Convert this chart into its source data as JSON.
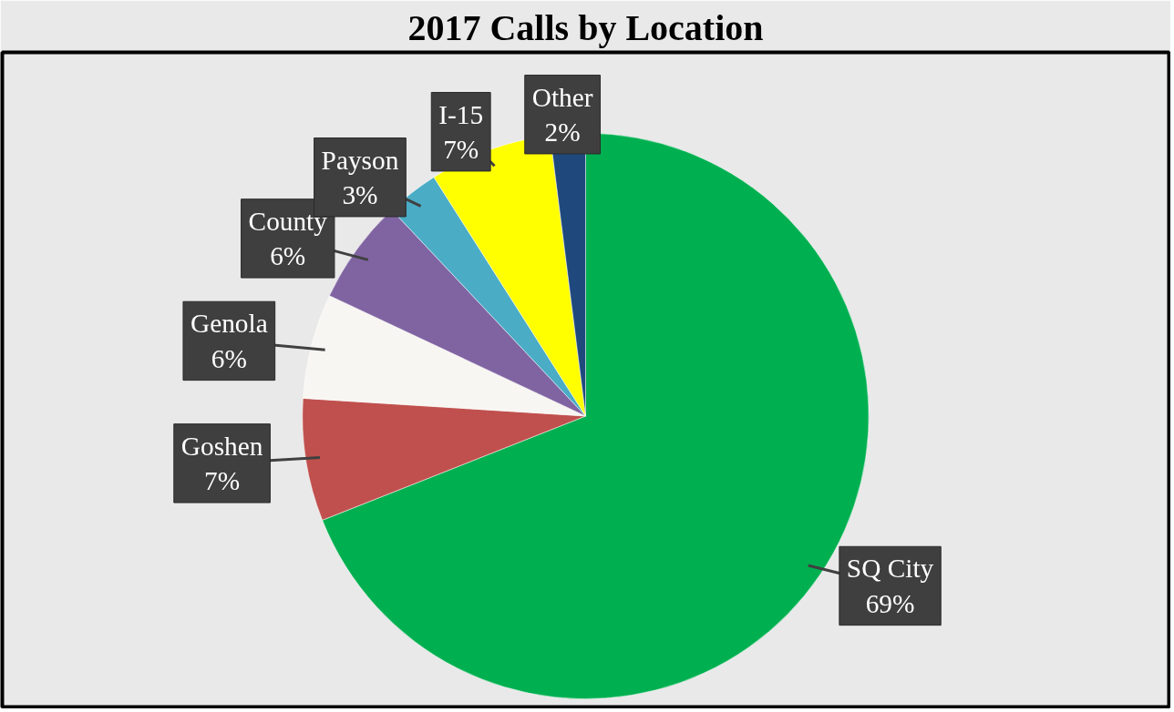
{
  "chart_data": {
    "type": "pie",
    "title": "2017 Calls by Location",
    "categories": [
      "SQ City",
      "Goshen",
      "Genola",
      "County",
      "Payson",
      "I-15",
      "Other"
    ],
    "values": [
      69,
      7,
      6,
      6,
      3,
      7,
      2
    ],
    "colors": [
      "#00b050",
      "#c0504d",
      "#f8f6f2",
      "#8064a2",
      "#4bacc6",
      "#ffff00",
      "#1f497d"
    ],
    "value_labels": [
      "69%",
      "7%",
      "6%",
      "6%",
      "3%",
      "7%",
      "2%"
    ]
  }
}
